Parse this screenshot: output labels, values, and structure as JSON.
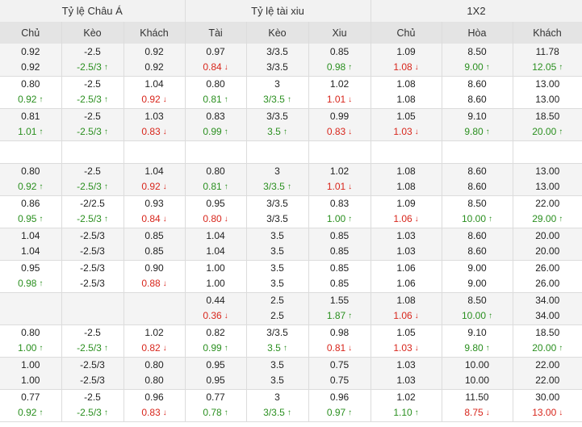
{
  "header": {
    "groups": [
      "Tỷ lệ Châu Á",
      "Tỷ lệ tài xiu",
      "1X2"
    ],
    "columns": [
      "Chủ",
      "Kèo",
      "Khách",
      "Tài",
      "Kèo",
      "Xiu",
      "Chủ",
      "Hòa",
      "Khách"
    ]
  },
  "rows": [
    {
      "cells": [
        [
          {
            "v": "0.92"
          },
          {
            "v": "0.92"
          }
        ],
        [
          {
            "v": "-2.5"
          },
          {
            "v": "-2.5/3",
            "d": "up"
          }
        ],
        [
          {
            "v": "0.92"
          },
          {
            "v": "0.92"
          }
        ],
        [
          {
            "v": "0.97"
          },
          {
            "v": "0.84",
            "d": "down"
          }
        ],
        [
          {
            "v": "3/3.5"
          },
          {
            "v": "3/3.5"
          }
        ],
        [
          {
            "v": "0.85"
          },
          {
            "v": "0.98",
            "d": "up"
          }
        ],
        [
          {
            "v": "1.09"
          },
          {
            "v": "1.08",
            "d": "down"
          }
        ],
        [
          {
            "v": "8.50"
          },
          {
            "v": "9.00",
            "d": "up"
          }
        ],
        [
          {
            "v": "11.78"
          },
          {
            "v": "12.05",
            "d": "up"
          }
        ]
      ]
    },
    {
      "cells": [
        [
          {
            "v": "0.80"
          },
          {
            "v": "0.92",
            "d": "up"
          }
        ],
        [
          {
            "v": "-2.5"
          },
          {
            "v": "-2.5/3",
            "d": "up"
          }
        ],
        [
          {
            "v": "1.04"
          },
          {
            "v": "0.92",
            "d": "down"
          }
        ],
        [
          {
            "v": "0.80"
          },
          {
            "v": "0.81",
            "d": "up"
          }
        ],
        [
          {
            "v": "3"
          },
          {
            "v": "3/3.5",
            "d": "up"
          }
        ],
        [
          {
            "v": "1.02"
          },
          {
            "v": "1.01",
            "d": "down"
          }
        ],
        [
          {
            "v": "1.08"
          },
          {
            "v": "1.08"
          }
        ],
        [
          {
            "v": "8.60"
          },
          {
            "v": "8.60"
          }
        ],
        [
          {
            "v": "13.00"
          },
          {
            "v": "13.00"
          }
        ]
      ]
    },
    {
      "cells": [
        [
          {
            "v": "0.81"
          },
          {
            "v": "1.01",
            "d": "up"
          }
        ],
        [
          {
            "v": "-2.5"
          },
          {
            "v": "-2.5/3",
            "d": "up"
          }
        ],
        [
          {
            "v": "1.03"
          },
          {
            "v": "0.83",
            "d": "down"
          }
        ],
        [
          {
            "v": "0.83"
          },
          {
            "v": "0.99",
            "d": "up"
          }
        ],
        [
          {
            "v": "3/3.5"
          },
          {
            "v": "3.5",
            "d": "up"
          }
        ],
        [
          {
            "v": "0.99"
          },
          {
            "v": "0.83",
            "d": "down"
          }
        ],
        [
          {
            "v": "1.05"
          },
          {
            "v": "1.03",
            "d": "down"
          }
        ],
        [
          {
            "v": "9.10"
          },
          {
            "v": "9.80",
            "d": "up"
          }
        ],
        [
          {
            "v": "18.50"
          },
          {
            "v": "20.00",
            "d": "up"
          }
        ]
      ]
    },
    {
      "blank": true,
      "cells": [
        [],
        [],
        [],
        [],
        [],
        [],
        [],
        [],
        []
      ]
    },
    {
      "cells": [
        [
          {
            "v": "0.80"
          },
          {
            "v": "0.92",
            "d": "up"
          }
        ],
        [
          {
            "v": "-2.5"
          },
          {
            "v": "-2.5/3",
            "d": "up"
          }
        ],
        [
          {
            "v": "1.04"
          },
          {
            "v": "0.92",
            "d": "down"
          }
        ],
        [
          {
            "v": "0.80"
          },
          {
            "v": "0.81",
            "d": "up"
          }
        ],
        [
          {
            "v": "3"
          },
          {
            "v": "3/3.5",
            "d": "up"
          }
        ],
        [
          {
            "v": "1.02"
          },
          {
            "v": "1.01",
            "d": "down"
          }
        ],
        [
          {
            "v": "1.08"
          },
          {
            "v": "1.08"
          }
        ],
        [
          {
            "v": "8.60"
          },
          {
            "v": "8.60"
          }
        ],
        [
          {
            "v": "13.00"
          },
          {
            "v": "13.00"
          }
        ]
      ]
    },
    {
      "cells": [
        [
          {
            "v": "0.86"
          },
          {
            "v": "0.95",
            "d": "up"
          }
        ],
        [
          {
            "v": "-2/2.5"
          },
          {
            "v": "-2.5/3",
            "d": "up"
          }
        ],
        [
          {
            "v": "0.93"
          },
          {
            "v": "0.84",
            "d": "down"
          }
        ],
        [
          {
            "v": "0.95"
          },
          {
            "v": "0.80",
            "d": "down"
          }
        ],
        [
          {
            "v": "3/3.5"
          },
          {
            "v": "3/3.5"
          }
        ],
        [
          {
            "v": "0.83"
          },
          {
            "v": "1.00",
            "d": "up"
          }
        ],
        [
          {
            "v": "1.09"
          },
          {
            "v": "1.06",
            "d": "down"
          }
        ],
        [
          {
            "v": "8.50"
          },
          {
            "v": "10.00",
            "d": "up"
          }
        ],
        [
          {
            "v": "22.00"
          },
          {
            "v": "29.00",
            "d": "up"
          }
        ]
      ]
    },
    {
      "cells": [
        [
          {
            "v": "1.04"
          },
          {
            "v": "1.04"
          }
        ],
        [
          {
            "v": "-2.5/3"
          },
          {
            "v": "-2.5/3"
          }
        ],
        [
          {
            "v": "0.85"
          },
          {
            "v": "0.85"
          }
        ],
        [
          {
            "v": "1.04"
          },
          {
            "v": "1.04"
          }
        ],
        [
          {
            "v": "3.5"
          },
          {
            "v": "3.5"
          }
        ],
        [
          {
            "v": "0.85"
          },
          {
            "v": "0.85"
          }
        ],
        [
          {
            "v": "1.03"
          },
          {
            "v": "1.03"
          }
        ],
        [
          {
            "v": "8.60"
          },
          {
            "v": "8.60"
          }
        ],
        [
          {
            "v": "20.00"
          },
          {
            "v": "20.00"
          }
        ]
      ]
    },
    {
      "cells": [
        [
          {
            "v": "0.95"
          },
          {
            "v": "0.98",
            "d": "up"
          }
        ],
        [
          {
            "v": "-2.5/3"
          },
          {
            "v": "-2.5/3"
          }
        ],
        [
          {
            "v": "0.90"
          },
          {
            "v": "0.88",
            "d": "down"
          }
        ],
        [
          {
            "v": "1.00"
          },
          {
            "v": "1.00"
          }
        ],
        [
          {
            "v": "3.5"
          },
          {
            "v": "3.5"
          }
        ],
        [
          {
            "v": "0.85"
          },
          {
            "v": "0.85"
          }
        ],
        [
          {
            "v": "1.06"
          },
          {
            "v": "1.06"
          }
        ],
        [
          {
            "v": "9.00"
          },
          {
            "v": "9.00"
          }
        ],
        [
          {
            "v": "26.00"
          },
          {
            "v": "26.00"
          }
        ]
      ]
    },
    {
      "cells": [
        [],
        [],
        [],
        [
          {
            "v": "0.44"
          },
          {
            "v": "0.36",
            "d": "down"
          }
        ],
        [
          {
            "v": "2.5"
          },
          {
            "v": "2.5"
          }
        ],
        [
          {
            "v": "1.55"
          },
          {
            "v": "1.87",
            "d": "up"
          }
        ],
        [
          {
            "v": "1.08"
          },
          {
            "v": "1.06",
            "d": "down"
          }
        ],
        [
          {
            "v": "8.50"
          },
          {
            "v": "10.00",
            "d": "up"
          }
        ],
        [
          {
            "v": "34.00"
          },
          {
            "v": "34.00"
          }
        ]
      ]
    },
    {
      "cells": [
        [
          {
            "v": "0.80"
          },
          {
            "v": "1.00",
            "d": "up"
          }
        ],
        [
          {
            "v": "-2.5"
          },
          {
            "v": "-2.5/3",
            "d": "up"
          }
        ],
        [
          {
            "v": "1.02"
          },
          {
            "v": "0.82",
            "d": "down"
          }
        ],
        [
          {
            "v": "0.82"
          },
          {
            "v": "0.99",
            "d": "up"
          }
        ],
        [
          {
            "v": "3/3.5"
          },
          {
            "v": "3.5",
            "d": "up"
          }
        ],
        [
          {
            "v": "0.98"
          },
          {
            "v": "0.81",
            "d": "down"
          }
        ],
        [
          {
            "v": "1.05"
          },
          {
            "v": "1.03",
            "d": "down"
          }
        ],
        [
          {
            "v": "9.10"
          },
          {
            "v": "9.80",
            "d": "up"
          }
        ],
        [
          {
            "v": "18.50"
          },
          {
            "v": "20.00",
            "d": "up"
          }
        ]
      ]
    },
    {
      "cells": [
        [
          {
            "v": "1.00"
          },
          {
            "v": "1.00"
          }
        ],
        [
          {
            "v": "-2.5/3"
          },
          {
            "v": "-2.5/3"
          }
        ],
        [
          {
            "v": "0.80"
          },
          {
            "v": "0.80"
          }
        ],
        [
          {
            "v": "0.95"
          },
          {
            "v": "0.95"
          }
        ],
        [
          {
            "v": "3.5"
          },
          {
            "v": "3.5"
          }
        ],
        [
          {
            "v": "0.75"
          },
          {
            "v": "0.75"
          }
        ],
        [
          {
            "v": "1.03"
          },
          {
            "v": "1.03"
          }
        ],
        [
          {
            "v": "10.00"
          },
          {
            "v": "10.00"
          }
        ],
        [
          {
            "v": "22.00"
          },
          {
            "v": "22.00"
          }
        ]
      ]
    },
    {
      "cells": [
        [
          {
            "v": "0.77"
          },
          {
            "v": "0.92",
            "d": "up"
          }
        ],
        [
          {
            "v": "-2.5"
          },
          {
            "v": "-2.5/3",
            "d": "up"
          }
        ],
        [
          {
            "v": "0.96"
          },
          {
            "v": "0.83",
            "d": "down"
          }
        ],
        [
          {
            "v": "0.77"
          },
          {
            "v": "0.78",
            "d": "up"
          }
        ],
        [
          {
            "v": "3"
          },
          {
            "v": "3/3.5",
            "d": "up"
          }
        ],
        [
          {
            "v": "0.96"
          },
          {
            "v": "0.97",
            "d": "up"
          }
        ],
        [
          {
            "v": "1.02"
          },
          {
            "v": "1.10",
            "d": "up"
          }
        ],
        [
          {
            "v": "11.50"
          },
          {
            "v": "8.75",
            "d": "down"
          }
        ],
        [
          {
            "v": "30.00"
          },
          {
            "v": "13.00",
            "d": "down"
          }
        ]
      ]
    }
  ],
  "icons": {
    "up": "arrow-up-icon",
    "down": "arrow-down-icon"
  },
  "colors": {
    "up": "#2a8f1f",
    "down": "#d8261c",
    "header_top": "#f2f2f2",
    "header_cols": "#e4e4e4",
    "row_alt": "#f4f4f4"
  }
}
